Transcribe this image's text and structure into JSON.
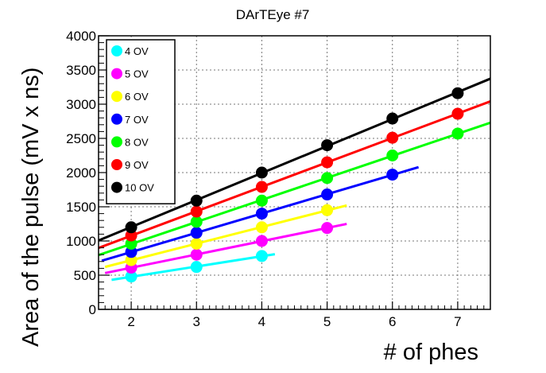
{
  "chart_data": {
    "type": "scatter",
    "title": "DArTEye #7",
    "xlabel": "# of phes",
    "ylabel": "Area of the pulse (mV x ns)",
    "xlim": [
      1.5,
      7.5
    ],
    "ylim": [
      0,
      4000
    ],
    "xticks": [
      2,
      3,
      4,
      5,
      6,
      7
    ],
    "yticks": [
      0,
      500,
      1000,
      1500,
      2000,
      2500,
      3000,
      3500,
      4000
    ],
    "grid": true,
    "legend_position": "top-left",
    "series": [
      {
        "name": "4 OV",
        "color": "#00ffff",
        "x": [
          2,
          3,
          4
        ],
        "y": [
          480,
          620,
          780
        ],
        "fit": [
          1.7,
          4.2
        ]
      },
      {
        "name": "5 OV",
        "color": "#ff00ff",
        "x": [
          2,
          3,
          4,
          5
        ],
        "y": [
          610,
          800,
          1000,
          1190
        ],
        "fit": [
          1.6,
          5.3
        ]
      },
      {
        "name": "6 OV",
        "color": "#ffff00",
        "x": [
          2,
          3,
          4,
          5
        ],
        "y": [
          720,
          960,
          1200,
          1450
        ],
        "fit": [
          1.6,
          5.3
        ]
      },
      {
        "name": "7 OV",
        "color": "#0000ff",
        "x": [
          2,
          3,
          4,
          5,
          6
        ],
        "y": [
          840,
          1120,
          1400,
          1680,
          1970
        ],
        "fit": [
          1.55,
          6.4
        ]
      },
      {
        "name": "8 OV",
        "color": "#00ff00",
        "x": [
          2,
          3,
          4,
          5,
          6,
          7
        ],
        "y": [
          960,
          1280,
          1590,
          1920,
          2250,
          2570
        ],
        "fit": [
          1.5,
          7.5
        ]
      },
      {
        "name": "9 OV",
        "color": "#ff0000",
        "x": [
          2,
          3,
          4,
          5,
          6,
          7
        ],
        "y": [
          1080,
          1430,
          1790,
          2150,
          2510,
          2860
        ],
        "fit": [
          1.5,
          7.5
        ]
      },
      {
        "name": "10 OV",
        "color": "#000000",
        "x": [
          2,
          3,
          4,
          5,
          6,
          7
        ],
        "y": [
          1200,
          1590,
          2000,
          2400,
          2790,
          3160
        ],
        "fit": [
          1.5,
          7.5
        ]
      }
    ]
  }
}
